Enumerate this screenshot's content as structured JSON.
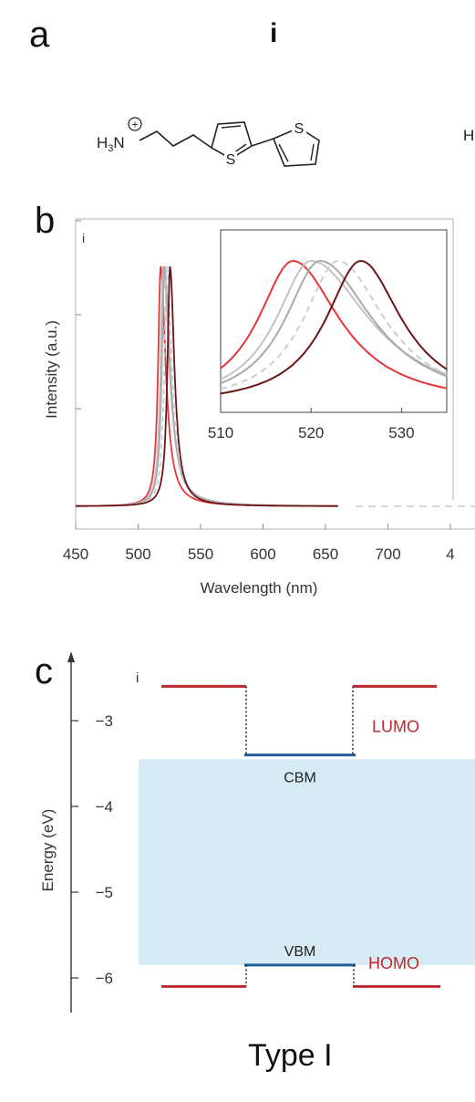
{
  "panel_a": {
    "letter": "a",
    "roman": "i",
    "molecule": {
      "amine": "H3N",
      "amine_charge": "+",
      "s1": "S",
      "s2": "S",
      "cut_text": "H"
    }
  },
  "panel_b": {
    "letter": "b",
    "roman": "i",
    "chart_data": {
      "type": "line",
      "xlabel": "Wavelength (nm)",
      "ylabel": "Intensity (a.u.)",
      "xlim": [
        450,
        750
      ],
      "xticks": [
        "450",
        "500",
        "550",
        "600",
        "650",
        "700",
        "4"
      ],
      "series": [
        {
          "color": "#e8353a",
          "peak": 518,
          "width_left": 6,
          "width_right": 8,
          "style": "solid"
        },
        {
          "color": "#c3c3c3",
          "peak": 520,
          "width_left": 6,
          "width_right": 10,
          "style": "solid"
        },
        {
          "color": "#a9a9a9",
          "peak": 521,
          "width_left": 6,
          "width_right": 9,
          "style": "solid"
        },
        {
          "color": "#c9cdd6",
          "peak": 523,
          "width_left": 6,
          "width_right": 8,
          "style": "dashed"
        },
        {
          "color": "#6b1515",
          "peak": 525.5,
          "width_left": 6,
          "width_right": 7,
          "style": "solid"
        }
      ],
      "inset": {
        "xlim": [
          510,
          535
        ],
        "xticks": [
          "510",
          "520",
          "530"
        ]
      }
    }
  },
  "panel_c": {
    "letter": "c",
    "roman": "i",
    "ylabel": "Energy (eV)",
    "yticks": [
      "−3",
      "−4",
      "−5",
      "−6"
    ],
    "lumo_label": "LUMO",
    "homo_label": "HOMO",
    "cbm_label": "CBM",
    "vbm_label": "VBM",
    "type_label": "Type I",
    "levels": {
      "lumo": -2.6,
      "cbm": -3.4,
      "vbm": -5.85,
      "homo": -6.1
    },
    "colors": {
      "organic": "#c0272d",
      "perovskite": "#1f5e96",
      "band": "#d6eaf3"
    }
  }
}
